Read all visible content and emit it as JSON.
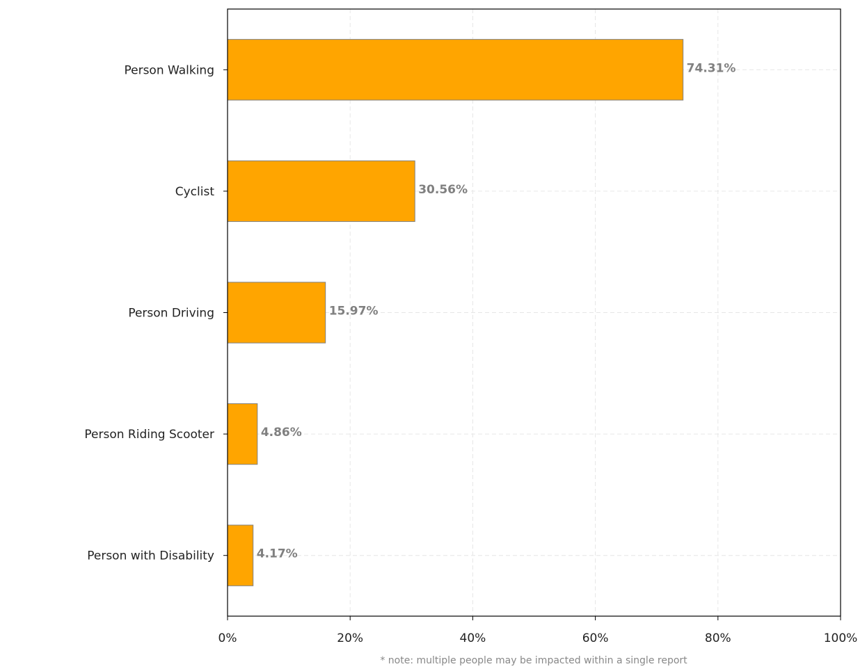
{
  "chart_data": {
    "type": "barh",
    "categories": [
      "Person Walking",
      "Cyclist",
      "Person Driving",
      "Person Riding Scooter",
      "Person with Disability"
    ],
    "values": [
      74.31,
      30.56,
      15.97,
      4.86,
      4.17
    ],
    "value_labels": [
      "74.31%",
      "30.56%",
      "15.97%",
      "4.86%",
      "4.17%"
    ],
    "color": "#ffa500",
    "xlim": [
      0,
      100
    ],
    "xticks": [
      {
        "value": 0,
        "label": "0%"
      },
      {
        "value": 20,
        "label": "20%"
      },
      {
        "value": 40,
        "label": "40%"
      },
      {
        "value": 60,
        "label": "60%"
      },
      {
        "value": 80,
        "label": "80%"
      },
      {
        "value": 100,
        "label": "100%"
      }
    ],
    "grid": true,
    "annotation": "* note: multiple people may be impacted within a single report"
  }
}
